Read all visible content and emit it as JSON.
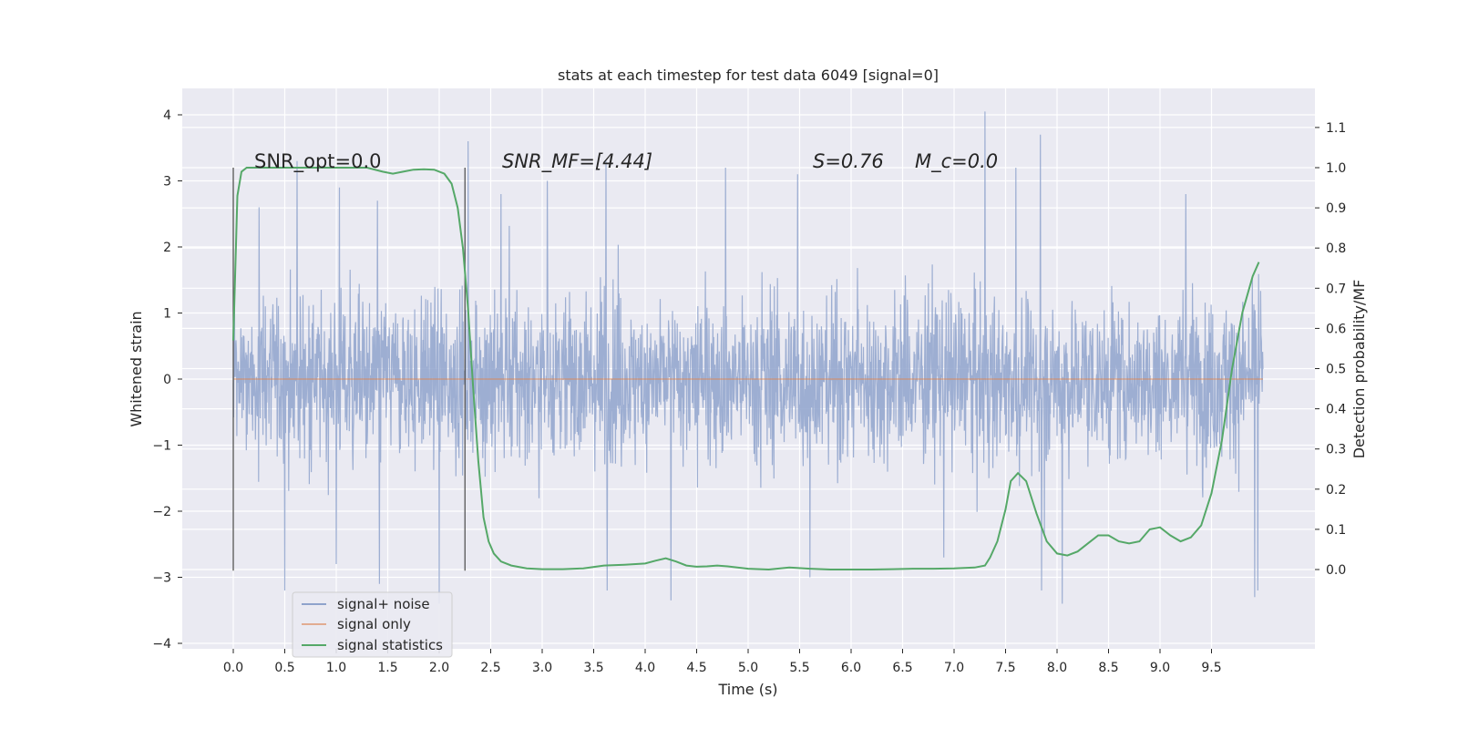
{
  "chart_data": {
    "type": "line",
    "title": "stats at each timestep for test data 6049 [signal=0]",
    "xlabel": "Time (s)",
    "ylabel": "Whitened strain",
    "y2label": "Detection probability/MF",
    "xlim": [
      -0.5,
      10.5
    ],
    "ylim": [
      -4.1,
      4.4
    ],
    "y2lim": [
      -0.2,
      1.2
    ],
    "xticks": [
      "0.0",
      "0.5",
      "1.0",
      "1.5",
      "2.0",
      "2.5",
      "3.0",
      "3.5",
      "4.0",
      "4.5",
      "5.0",
      "5.5",
      "6.0",
      "6.5",
      "7.0",
      "7.5",
      "8.0",
      "8.5",
      "9.0",
      "9.5"
    ],
    "yticks": [
      "4",
      "3",
      "2",
      "1",
      "0",
      "−1",
      "−2",
      "−3",
      "−4"
    ],
    "y2ticks": [
      "1.1",
      "1.0",
      "0.9",
      "0.8",
      "0.7",
      "0.6",
      "0.5",
      "0.4",
      "0.3",
      "0.2",
      "0.1",
      "0.0"
    ],
    "grid": true,
    "legend_position": "lower-left",
    "annotations": [
      {
        "text": "SNR_opt=0.0",
        "x": 0.2,
        "y": 3.2
      },
      {
        "text": "SNR_MF=[4.44]",
        "x": 2.6,
        "y": 3.2
      },
      {
        "text": "S=0.76",
        "x": 5.6,
        "y": 3.2
      },
      {
        "text": "M_c=0.0",
        "x": 6.6,
        "y": 3.2
      }
    ],
    "vlines": [
      {
        "x": 0.0,
        "ymin": -2.9,
        "ymax": 3.2
      },
      {
        "x": 2.25,
        "ymin": -2.9,
        "ymax": 3.2
      }
    ],
    "series": [
      {
        "name": "signal+ noise",
        "color": "#8fa3cc",
        "axis": "left",
        "x_range": [
          0.0,
          10.0
        ],
        "typical_band": [
          -1.2,
          1.4
        ],
        "spikes": [
          [
            0.62,
            3.3
          ],
          [
            0.25,
            2.6
          ],
          [
            1.03,
            2.9
          ],
          [
            1.4,
            2.7
          ],
          [
            2.28,
            3.6
          ],
          [
            2.6,
            2.8
          ],
          [
            3.05,
            3.0
          ],
          [
            3.62,
            3.3
          ],
          [
            4.78,
            3.2
          ],
          [
            5.48,
            3.1
          ],
          [
            7.3,
            4.05
          ],
          [
            7.84,
            3.7
          ],
          [
            7.6,
            3.2
          ],
          [
            9.25,
            2.8
          ],
          [
            0.5,
            -3.2
          ],
          [
            1.42,
            -3.1
          ],
          [
            2.0,
            -3.4
          ],
          [
            3.63,
            -3.2
          ],
          [
            4.25,
            -3.35
          ],
          [
            5.6,
            -3.0
          ],
          [
            7.85,
            -3.2
          ],
          [
            8.05,
            -3.4
          ],
          [
            9.92,
            -3.3
          ],
          [
            9.95,
            -3.2
          ],
          [
            6.9,
            -2.7
          ],
          [
            1.0,
            -2.8
          ]
        ]
      },
      {
        "name": "signal only",
        "color": "#dd8452",
        "axis": "left",
        "x": [
          0.0,
          10.0
        ],
        "y": [
          0.0,
          0.0
        ]
      },
      {
        "name": "signal statistics",
        "color": "#55a868",
        "axis": "right",
        "x": [
          0.0,
          0.04,
          0.08,
          0.13,
          0.2,
          0.3,
          0.5,
          0.7,
          0.9,
          1.1,
          1.3,
          1.45,
          1.55,
          1.65,
          1.75,
          1.85,
          1.95,
          2.05,
          2.12,
          2.18,
          2.23,
          2.28,
          2.33,
          2.38,
          2.43,
          2.48,
          2.53,
          2.6,
          2.7,
          2.85,
          3.0,
          3.2,
          3.4,
          3.6,
          3.8,
          4.0,
          4.1,
          4.2,
          4.3,
          4.4,
          4.5,
          4.6,
          4.7,
          4.8,
          5.0,
          5.2,
          5.4,
          5.6,
          5.8,
          6.0,
          6.2,
          6.4,
          6.6,
          6.8,
          7.0,
          7.2,
          7.3,
          7.35,
          7.42,
          7.5,
          7.55,
          7.62,
          7.7,
          7.8,
          7.9,
          8.0,
          8.1,
          8.2,
          8.3,
          8.4,
          8.5,
          8.6,
          8.7,
          8.8,
          8.9,
          9.0,
          9.1,
          9.2,
          9.3,
          9.4,
          9.5,
          9.6,
          9.7,
          9.8,
          9.9,
          9.96
        ],
        "y": [
          0.57,
          0.93,
          0.99,
          1.0,
          1.0,
          1.0,
          1.0,
          1.0,
          1.0,
          1.0,
          1.0,
          0.99,
          0.985,
          0.99,
          0.995,
          0.996,
          0.995,
          0.985,
          0.96,
          0.9,
          0.8,
          0.65,
          0.45,
          0.27,
          0.13,
          0.07,
          0.04,
          0.02,
          0.01,
          0.003,
          0.001,
          0.001,
          0.003,
          0.01,
          0.012,
          0.015,
          0.022,
          0.028,
          0.02,
          0.01,
          0.007,
          0.008,
          0.01,
          0.008,
          0.002,
          0.0,
          0.005,
          0.002,
          0.0,
          0.0,
          0.0,
          0.001,
          0.002,
          0.002,
          0.003,
          0.005,
          0.01,
          0.03,
          0.07,
          0.15,
          0.22,
          0.24,
          0.22,
          0.14,
          0.07,
          0.04,
          0.035,
          0.045,
          0.065,
          0.085,
          0.085,
          0.07,
          0.065,
          0.07,
          0.1,
          0.105,
          0.085,
          0.07,
          0.08,
          0.11,
          0.19,
          0.32,
          0.5,
          0.64,
          0.73,
          0.765
        ]
      }
    ]
  }
}
